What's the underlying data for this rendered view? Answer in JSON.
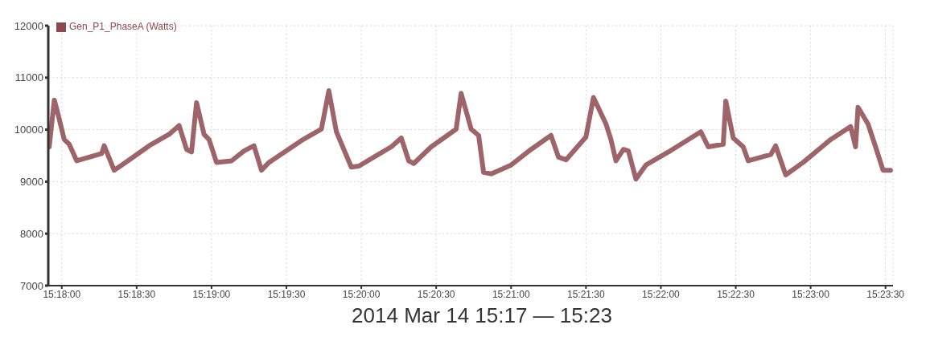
{
  "chart_data": {
    "type": "line",
    "xlabel": "2014 Mar 14 15:17 — 15:23",
    "x": [
      15.29861,
      15.29917,
      15.29944,
      15.30028,
      15.30083,
      15.30167,
      15.30444,
      15.30472,
      15.30583,
      15.30694,
      15.30972,
      15.31194,
      15.31306,
      15.31389,
      15.31444,
      15.315,
      15.31583,
      15.31639,
      15.31722,
      15.31889,
      15.32028,
      15.32139,
      15.32222,
      15.32306,
      15.32667,
      15.32889,
      15.32972,
      15.33056,
      15.33139,
      15.33222,
      15.33306,
      15.33472,
      15.33667,
      15.33778,
      15.33861,
      15.33917,
      15.34111,
      15.34389,
      15.34444,
      15.34556,
      15.34639,
      15.34694,
      15.34778,
      15.35,
      15.35222,
      15.35444,
      15.35528,
      15.35611,
      15.35833,
      15.35917,
      15.36056,
      15.36111,
      15.36167,
      15.3625,
      15.36306,
      15.36389,
      15.365,
      15.3675,
      15.37111,
      15.37194,
      15.37361,
      15.37389,
      15.37472,
      15.37583,
      15.37639,
      15.37889,
      15.37944,
      15.38056,
      15.3825,
      15.38556,
      15.38778,
      15.38833,
      15.38861,
      15.38972,
      15.39056,
      15.39139,
      15.39222
    ],
    "series": [
      {
        "name": "Gen_P1_PhaseA (Watts)",
        "color": "#8c4a4f",
        "values": [
          9670,
          10570,
          10400,
          9810,
          9720,
          9400,
          9540,
          9690,
          9220,
          9350,
          9690,
          9910,
          10080,
          9620,
          9570,
          10520,
          9910,
          9810,
          9370,
          9400,
          9590,
          9690,
          9220,
          9370,
          9790,
          10010,
          10750,
          9960,
          9620,
          9280,
          9300,
          9470,
          9670,
          9840,
          9400,
          9350,
          9670,
          10010,
          10700,
          10010,
          9890,
          9180,
          9150,
          9320,
          9620,
          9890,
          9470,
          9420,
          9860,
          10620,
          10110,
          9810,
          9400,
          9620,
          9590,
          9050,
          9320,
          9570,
          9960,
          9670,
          9720,
          10550,
          9840,
          9670,
          9400,
          9520,
          9690,
          9130,
          9370,
          9810,
          10060,
          9670,
          10430,
          10110,
          9670,
          9220,
          9220
        ]
      }
    ],
    "xlim": [
      15.2985,
      15.3925
    ],
    "xticks": [
      {
        "value": 15.3,
        "label": "15:18:00"
      },
      {
        "value": 15.308333,
        "label": "15:18:30"
      },
      {
        "value": 15.316667,
        "label": "15:19:00"
      },
      {
        "value": 15.325,
        "label": "15:19:30"
      },
      {
        "value": 15.333333,
        "label": "15:20:00"
      },
      {
        "value": 15.341667,
        "label": "15:20:30"
      },
      {
        "value": 15.35,
        "label": "15:21:00"
      },
      {
        "value": 15.358333,
        "label": "15:21:30"
      },
      {
        "value": 15.366667,
        "label": "15:22:00"
      },
      {
        "value": 15.375,
        "label": "15:22:30"
      },
      {
        "value": 15.383333,
        "label": "15:23:00"
      },
      {
        "value": 15.391667,
        "label": "15:23:30"
      }
    ],
    "ylim": [
      7000,
      12000
    ],
    "yticks": [
      7000,
      8000,
      9000,
      10000,
      11000,
      12000
    ],
    "grid": true,
    "legend": "top left",
    "marker": "none",
    "line_style": "solid"
  }
}
